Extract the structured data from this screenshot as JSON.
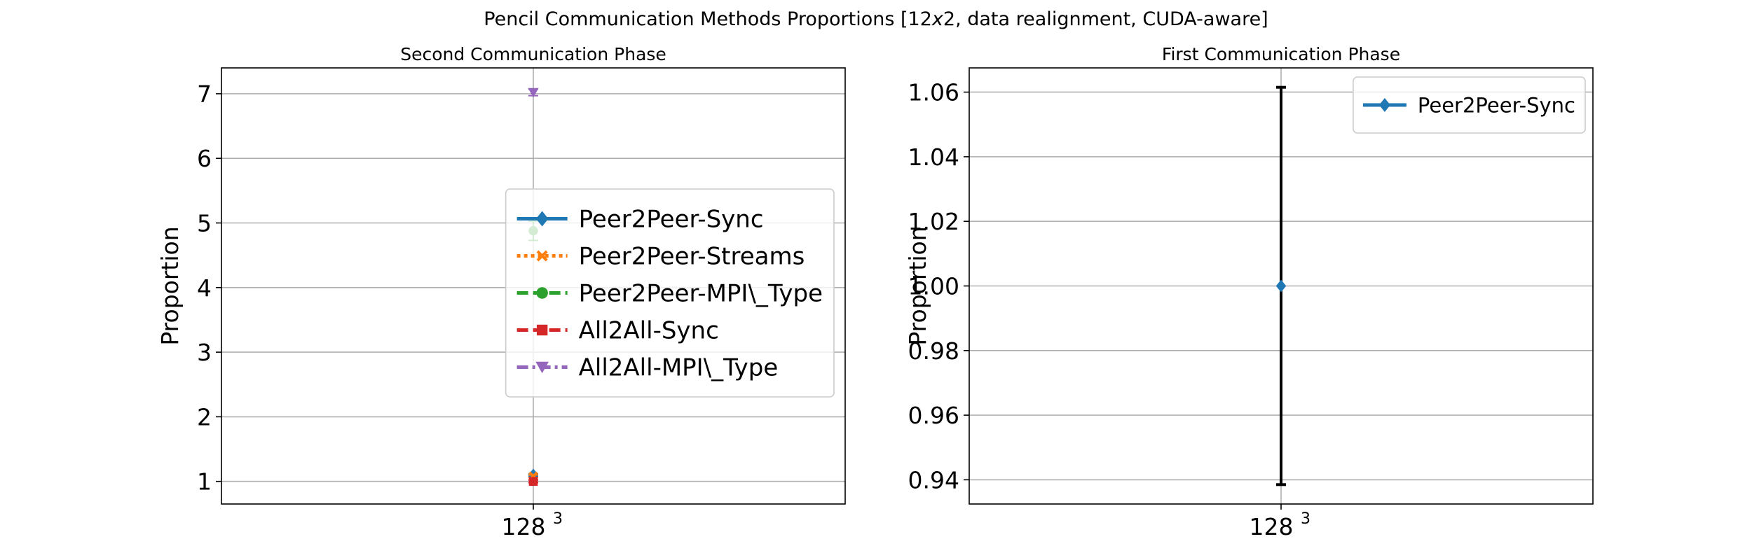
{
  "figure": {
    "title_main": "Pencil Communication Methods Proportions [12",
    "title_italic": "x",
    "title_rest": "2, data realignment, CUDA-aware]"
  },
  "chart_data": [
    {
      "type": "scatter",
      "title": "Second Communication Phase",
      "ylabel": "Proportion",
      "xlabel": "",
      "categories": [
        {
          "base": "128",
          "sup": "3"
        }
      ],
      "ylim": [
        0.65,
        7.4
      ],
      "yticks": [
        1,
        2,
        3,
        4,
        5,
        6,
        7
      ],
      "ytick_labels": [
        "1",
        "2",
        "3",
        "4",
        "5",
        "6",
        "7"
      ],
      "grid": true,
      "legend_position": "center-right",
      "series": [
        {
          "name": "Peer2Peer-Sync",
          "values": [
            1.1
          ],
          "err": [
            0.02
          ],
          "color": "#1f77b4",
          "marker": "diamond",
          "linestyle": "solid"
        },
        {
          "name": "Peer2Peer-Streams",
          "values": [
            1.08
          ],
          "err": [
            0.02
          ],
          "color": "#ff7f0e",
          "marker": "x",
          "linestyle": "dotted"
        },
        {
          "name": "Peer2Peer-MPI\\_Type",
          "values": [
            4.88
          ],
          "err": [
            0.15
          ],
          "color": "#2ca02c",
          "marker": "circle",
          "linestyle": "dashed"
        },
        {
          "name": "All2All-Sync",
          "values": [
            1.0
          ],
          "err": [
            0.02
          ],
          "color": "#d62728",
          "marker": "square",
          "linestyle": "dashed"
        },
        {
          "name": "All2All-MPI\\_Type",
          "values": [
            7.02
          ],
          "err": [
            0.05
          ],
          "color": "#9467bd",
          "marker": "triangle-down",
          "linestyle": "dashdot"
        }
      ]
    },
    {
      "type": "scatter",
      "title": "First Communication Phase",
      "ylabel": "Proportion",
      "xlabel": "",
      "categories": [
        {
          "base": "128",
          "sup": "3"
        }
      ],
      "ylim": [
        0.9325,
        1.0675
      ],
      "yticks": [
        0.94,
        0.96,
        0.98,
        1.0,
        1.02,
        1.04,
        1.06
      ],
      "ytick_labels": [
        "0.94",
        "0.96",
        "0.98",
        "1.00",
        "1.02",
        "1.04",
        "1.06"
      ],
      "grid": true,
      "legend_position": "top-right",
      "series": [
        {
          "name": "Peer2Peer-Sync",
          "values": [
            1.0
          ],
          "err": [
            0.0615
          ],
          "color": "#1f77b4",
          "marker": "diamond",
          "linestyle": "solid"
        }
      ]
    }
  ]
}
